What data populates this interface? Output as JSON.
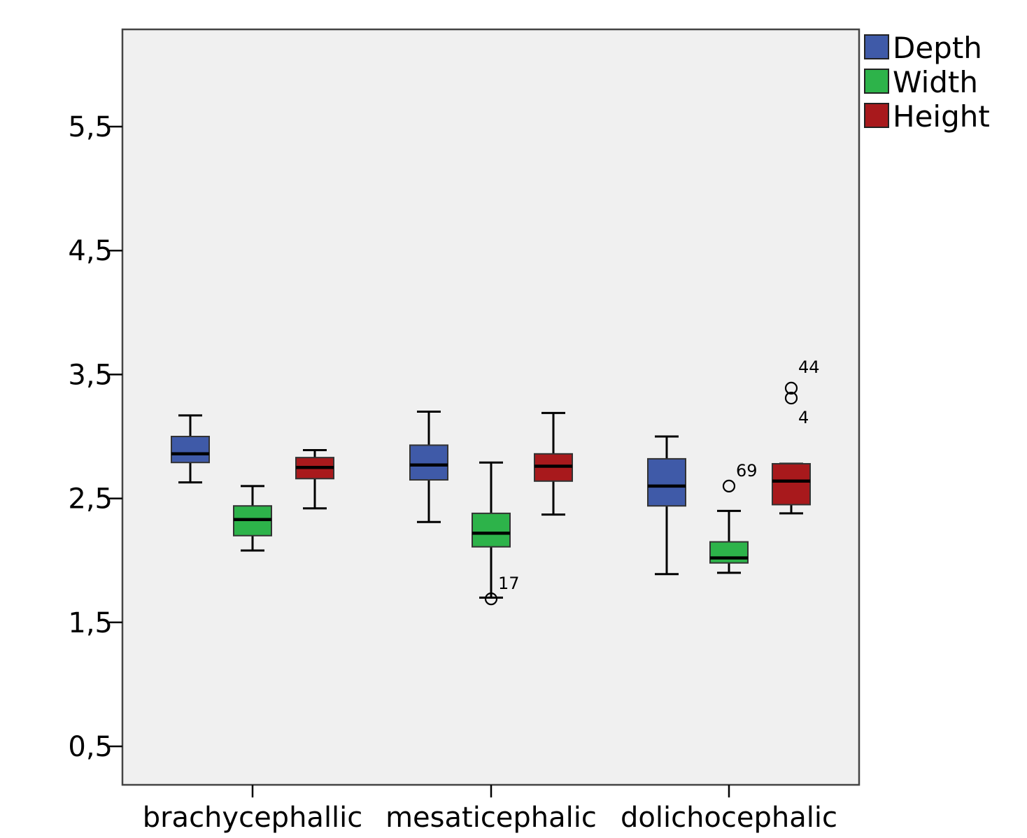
{
  "chart_data": {
    "type": "boxplot",
    "categories": [
      "brachycephallic",
      "mesaticephalic",
      "dolichocephalic"
    ],
    "y_ticks": [
      0.5,
      1.5,
      2.5,
      3.5,
      4.5,
      5.5
    ],
    "y_tick_labels": [
      "0,5",
      "1,5",
      "2,5",
      "3,5",
      "4,5",
      "5,5"
    ],
    "ylim": [
      0.2,
      6.3
    ],
    "grid": false,
    "legend_position": "top-right-outside",
    "series": [
      {
        "name": "Depth",
        "color": "#3f5aa8",
        "boxes": [
          {
            "min": 2.63,
            "q1": 2.79,
            "median": 2.86,
            "q3": 3.0,
            "max": 3.17,
            "outliers": []
          },
          {
            "min": 2.31,
            "q1": 2.65,
            "median": 2.77,
            "q3": 2.93,
            "max": 3.2,
            "outliers": []
          },
          {
            "min": 1.89,
            "q1": 2.44,
            "median": 2.6,
            "q3": 2.82,
            "max": 3.0,
            "outliers": []
          }
        ]
      },
      {
        "name": "Width",
        "color": "#2db34a",
        "boxes": [
          {
            "min": 2.08,
            "q1": 2.2,
            "median": 2.33,
            "q3": 2.44,
            "max": 2.6,
            "outliers": []
          },
          {
            "min": 1.7,
            "q1": 2.11,
            "median": 2.22,
            "q3": 2.38,
            "max": 2.79,
            "outliers": [
              {
                "value": 1.69,
                "label": "17"
              }
            ]
          },
          {
            "min": 1.9,
            "q1": 1.98,
            "median": 2.02,
            "q3": 2.15,
            "max": 2.4,
            "outliers": [
              {
                "value": 2.6,
                "label": "69"
              }
            ]
          }
        ]
      },
      {
        "name": "Height",
        "color": "#a8191c",
        "boxes": [
          {
            "min": 2.42,
            "q1": 2.66,
            "median": 2.75,
            "q3": 2.83,
            "max": 2.89,
            "outliers": []
          },
          {
            "min": 2.37,
            "q1": 2.64,
            "median": 2.76,
            "q3": 2.86,
            "max": 3.19,
            "outliers": []
          },
          {
            "min": 2.38,
            "q1": 2.45,
            "median": 2.64,
            "q3": 2.78,
            "max": 2.78,
            "outliers": [
              {
                "value": 3.39,
                "label": "44"
              },
              {
                "value": 3.31,
                "label": "4"
              }
            ]
          }
        ]
      }
    ]
  }
}
